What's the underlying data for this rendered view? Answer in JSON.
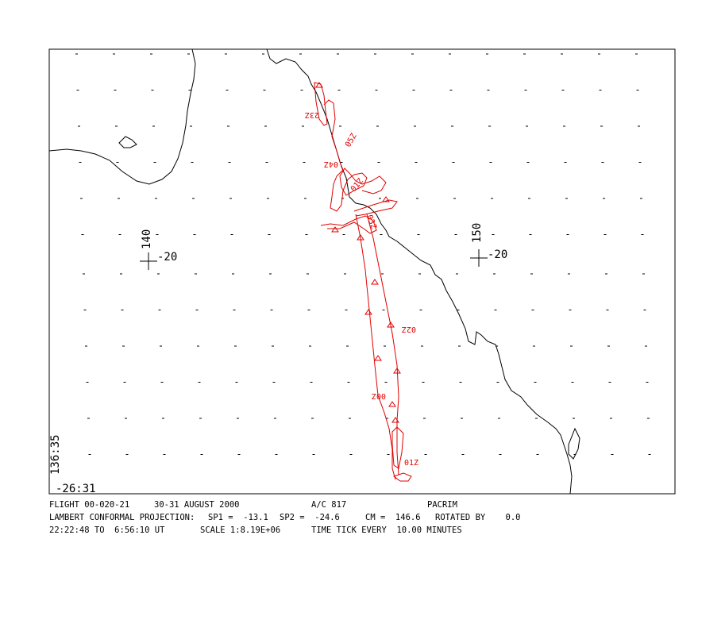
{
  "map": {
    "frame_color": "#000000",
    "coast_color": "#000000",
    "track_color": "#e00000",
    "grid": [
      {
        "label_lon": "140",
        "label_lat": "-20"
      },
      {
        "label_lon": "150",
        "label_lat": "-20"
      }
    ],
    "corner": {
      "lon": "136:35",
      "lat": "-26:31"
    },
    "time_labels": [
      "23Z",
      "05Z",
      "04Z",
      "01Z",
      "03Z",
      "02Z",
      "00Z",
      "01Z"
    ]
  },
  "footer": {
    "flight": "FLIGHT 00-020-21",
    "dates": "30-31 AUGUST 2000",
    "aircraft": "A/C 817",
    "mission": "PACRIM",
    "projection": "LAMBERT CONFORMAL PROJECTION:",
    "sp1": "SP1 =  -13.1",
    "sp2": "SP2 =  -24.6",
    "cm": "CM =  146.6",
    "rotated": "ROTATED BY    0.0",
    "times": "22:22:48 TO  6:56:10 UT",
    "scale": "SCALE 1:8.19E+06",
    "tick_every": "TIME TICK EVERY  10.00 MINUTES"
  }
}
